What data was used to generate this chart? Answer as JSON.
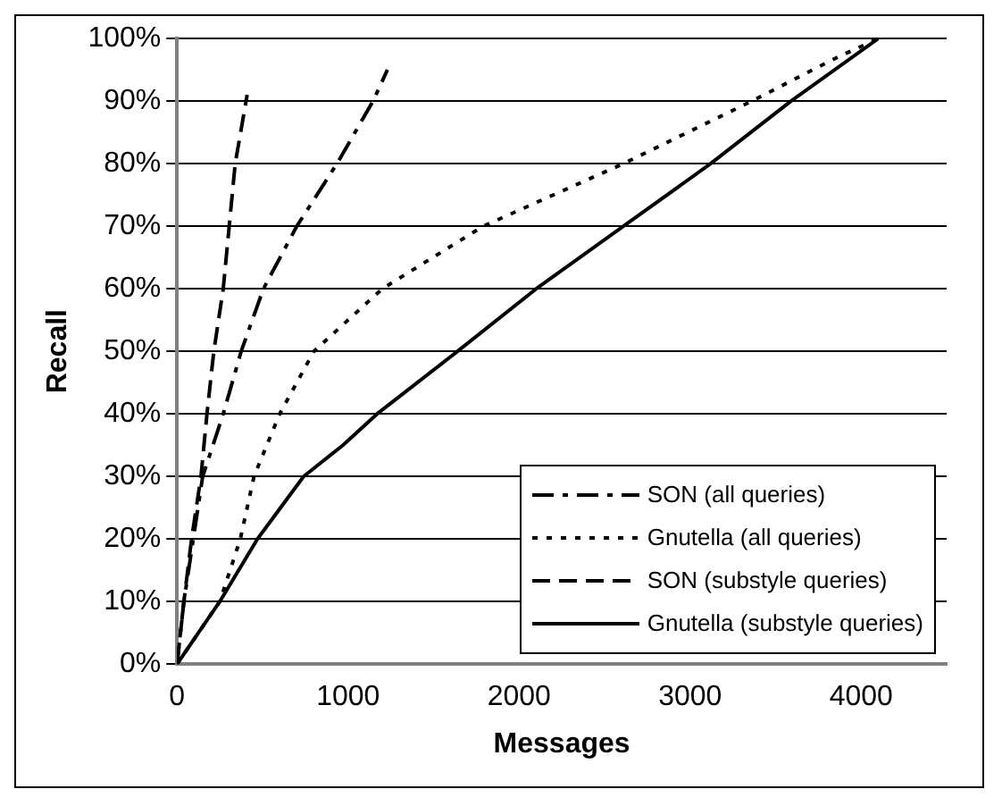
{
  "chart_data": {
    "type": "line",
    "xlabel": "Messages",
    "ylabel": "Recall",
    "xlim": [
      0,
      4500
    ],
    "xticks": [
      0,
      1000,
      2000,
      3000,
      4000
    ],
    "ylim": [
      0,
      100
    ],
    "yticks": [
      {
        "value": 0,
        "label": "0%"
      },
      {
        "value": 10,
        "label": "10%"
      },
      {
        "value": 20,
        "label": "20%"
      },
      {
        "value": 30,
        "label": "30%"
      },
      {
        "value": 40,
        "label": "40%"
      },
      {
        "value": 50,
        "label": "50%"
      },
      {
        "value": 60,
        "label": "60%"
      },
      {
        "value": 70,
        "label": "70%"
      },
      {
        "value": 80,
        "label": "80%"
      },
      {
        "value": 90,
        "label": "90%"
      },
      {
        "value": 100,
        "label": "100%"
      }
    ],
    "grid": "y",
    "legend": "bottom right",
    "marker": "none",
    "series": [
      {
        "name": "SON (all queries)",
        "color": "#000000",
        "line_style": "dashdot",
        "x": [
          0,
          40,
          95,
          150,
          270,
          375,
          505,
          700,
          935,
          1146,
          1230
        ],
        "values": [
          0,
          10,
          20,
          30,
          40,
          50,
          60,
          70,
          80,
          90,
          95
        ]
      },
      {
        "name": "Gnutella (all queries)",
        "color": "#000000",
        "line_style": "dotted",
        "x": [
          0,
          250,
          370,
          450,
          600,
          800,
          1200,
          1790,
          2610,
          3360,
          3860,
          4100
        ],
        "values": [
          0,
          10,
          20,
          30,
          40,
          50,
          60,
          70,
          80,
          90,
          97,
          100
        ]
      },
      {
        "name": "SON (substyle queries)",
        "color": "#000000",
        "line_style": "dashed",
        "x": [
          0,
          40,
          85,
          140,
          175,
          215,
          270,
          340,
          410
        ],
        "values": [
          0,
          10,
          20,
          30,
          40,
          50,
          60,
          80,
          91
        ]
      },
      {
        "name": "Gnutella (substyle queries)",
        "color": "#000000",
        "line_style": "solid",
        "x": [
          0,
          250,
          470,
          740,
          970,
          1170,
          1640,
          2100,
          2610,
          3120,
          3590,
          4100
        ],
        "values": [
          0,
          10,
          20,
          30,
          35,
          40,
          50,
          60,
          70,
          80,
          90,
          100
        ]
      }
    ]
  }
}
